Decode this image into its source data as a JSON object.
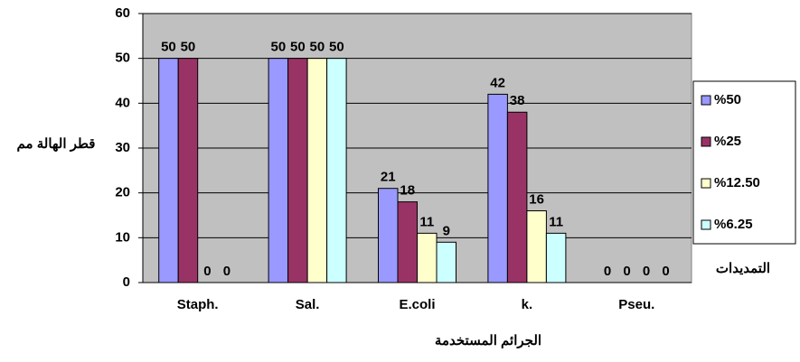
{
  "chart_data": {
    "type": "bar",
    "y_label": "قطر الهالة مم",
    "x_label": "الجرائم المستخدمة",
    "legend_title": "التمديدات",
    "categories": [
      "Staph.",
      "Sal.",
      "E.coli",
      "k.",
      "Pseu."
    ],
    "series": [
      {
        "name": "%50",
        "color": "#9999ff",
        "values": [
          50,
          50,
          21,
          42,
          0
        ]
      },
      {
        "name": "%25",
        "color": "#993366",
        "values": [
          50,
          50,
          18,
          38,
          0
        ]
      },
      {
        "name": "%12.50",
        "color": "#ffffcc",
        "values": [
          0,
          50,
          11,
          16,
          0
        ]
      },
      {
        "name": "%6.25",
        "color": "#ccffff",
        "values": [
          0,
          50,
          9,
          11,
          0
        ]
      }
    ],
    "ylim": [
      0,
      60
    ],
    "yticks": [
      0,
      10,
      20,
      30,
      40,
      50,
      60
    ],
    "grid": true,
    "legend": "right"
  }
}
